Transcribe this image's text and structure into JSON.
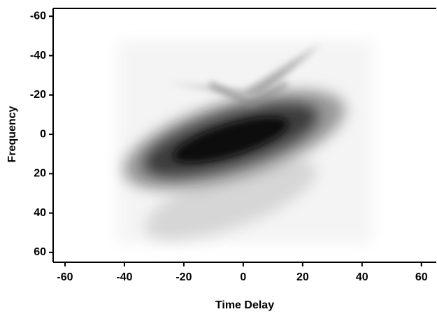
{
  "chart_data": {
    "type": "heatmap",
    "x_label": "Time Delay",
    "y_label": "Frequency",
    "xlim": [
      -64,
      65
    ],
    "xticks": [
      -60,
      -40,
      -20,
      0,
      20,
      40,
      60
    ],
    "ylim": [
      -64,
      65
    ],
    "yticks": [
      -60,
      -40,
      -20,
      0,
      20,
      40,
      60
    ],
    "y_inverted": true,
    "grid": false
  }
}
